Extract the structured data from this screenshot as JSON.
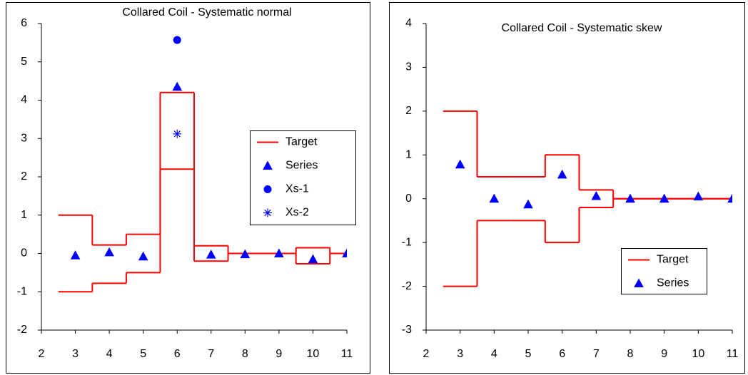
{
  "chart_data": [
    {
      "type": "step-scatter",
      "title": "Collared Coil - Systematic normal",
      "x": [
        3,
        4,
        5,
        6,
        7,
        8,
        9,
        10,
        11
      ],
      "xlim": [
        2,
        11
      ],
      "xticks": [
        2,
        3,
        4,
        5,
        6,
        7,
        8,
        9,
        10,
        11
      ],
      "ylim": [
        -2,
        6
      ],
      "yticks": [
        -2,
        -1,
        0,
        1,
        2,
        3,
        4,
        5,
        6
      ],
      "legend": "right",
      "series": [
        {
          "name": "Target",
          "color": "#ff0000",
          "style": "step",
          "values": [
            1,
            0.22,
            0.5,
            4.2,
            0.2,
            0,
            0,
            0.15,
            0
          ],
          "lower": [
            -1,
            -0.78,
            -0.5,
            2.2,
            -0.2,
            0,
            0,
            -0.27,
            0
          ]
        },
        {
          "name": "Series",
          "color": "#0000ff",
          "marker": "triangle",
          "values": [
            -0.05,
            0.03,
            -0.08,
            4.35,
            -0.03,
            -0.02,
            0,
            -0.15,
            0
          ]
        },
        {
          "name": "Xs-1",
          "color": "#0000ff",
          "marker": "circle",
          "x": [
            6
          ],
          "values": [
            5.57
          ]
        },
        {
          "name": "Xs-2",
          "color": "#0000ff",
          "marker": "star",
          "x": [
            6
          ],
          "values": [
            3.12
          ]
        }
      ]
    },
    {
      "type": "step-scatter",
      "title": "Collared Coil - Systematic skew",
      "x": [
        3,
        4,
        5,
        6,
        7,
        8,
        9,
        10,
        11
      ],
      "xlim": [
        2,
        11
      ],
      "xticks": [
        2,
        3,
        4,
        5,
        6,
        7,
        8,
        9,
        10,
        11
      ],
      "ylim": [
        -3,
        4
      ],
      "yticks": [
        -3,
        -2,
        -1,
        0,
        1,
        2,
        3,
        4
      ],
      "legend": "lower-right",
      "series": [
        {
          "name": "Target",
          "color": "#ff0000",
          "style": "step",
          "values": [
            2,
            0.5,
            0.5,
            1,
            0.2,
            0,
            0,
            0,
            0
          ],
          "lower": [
            -2,
            -0.5,
            -0.5,
            -1,
            -0.2,
            0,
            0,
            0,
            0
          ]
        },
        {
          "name": "Series",
          "color": "#0000ff",
          "marker": "triangle",
          "values": [
            0.78,
            0,
            -0.13,
            0.55,
            0.06,
            0,
            0,
            0.05,
            0
          ]
        }
      ]
    }
  ]
}
